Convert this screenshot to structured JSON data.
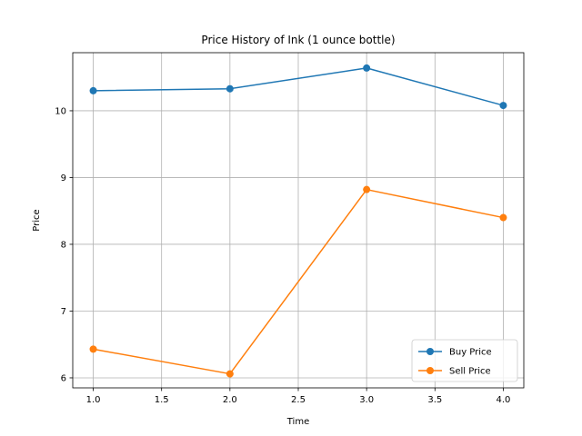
{
  "chart_data": {
    "type": "line",
    "title": "Price History of Ink (1 ounce bottle)",
    "xlabel": "Time",
    "ylabel": "Price",
    "xlim": [
      0.85,
      4.15
    ],
    "ylim": [
      5.85,
      10.87
    ],
    "xticks": [
      1.0,
      1.5,
      2.0,
      2.5,
      3.0,
      3.5,
      4.0
    ],
    "xtick_labels": [
      "1.0",
      "1.5",
      "2.0",
      "2.5",
      "3.0",
      "3.5",
      "4.0"
    ],
    "yticks": [
      6,
      7,
      8,
      9,
      10
    ],
    "ytick_labels": [
      "6",
      "7",
      "8",
      "9",
      "10"
    ],
    "grid": true,
    "legend_position": "bottom-right",
    "x": [
      1,
      2,
      3,
      4
    ],
    "series": [
      {
        "name": "Buy Price",
        "color": "#1f77b4",
        "marker": "circle",
        "values": [
          10.3,
          10.33,
          10.64,
          10.08
        ]
      },
      {
        "name": "Sell Price",
        "color": "#ff7f0e",
        "marker": "circle",
        "values": [
          6.43,
          6.06,
          8.82,
          8.4
        ]
      }
    ]
  }
}
